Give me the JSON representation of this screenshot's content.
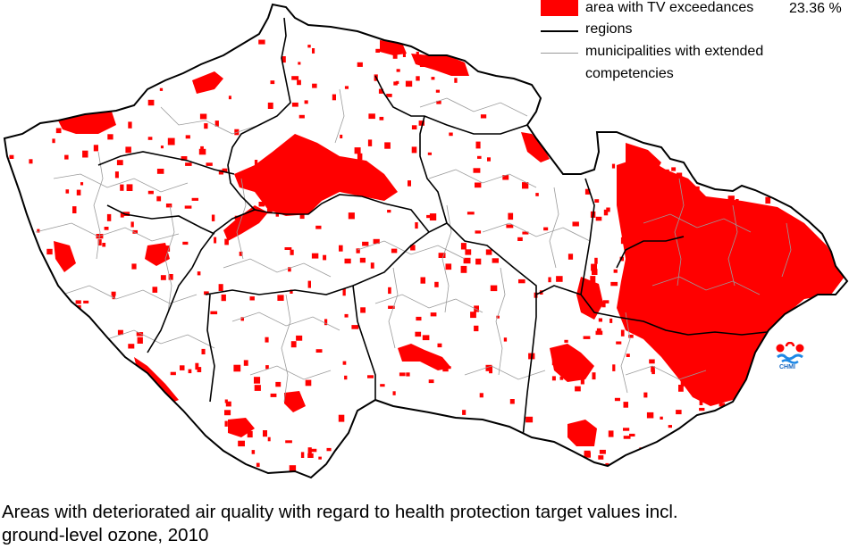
{
  "legend": {
    "exceedance_label": "area with TV exceedances",
    "exceedance_percent": "23.36 %",
    "regions_label": "regions",
    "municipalities_label_line1": "municipalities with extended",
    "municipalities_label_line2": "competencies"
  },
  "logo": {
    "text": "CHMI"
  },
  "caption": {
    "line1": "Areas with deteriorated air quality with regard to health protection target values incl.",
    "line2": "ground-level ozone, 2010"
  },
  "colors": {
    "exceedance": "#ff0000",
    "background": "#ffffff",
    "region_border": "#000000",
    "municipality_border": "#999999"
  }
}
